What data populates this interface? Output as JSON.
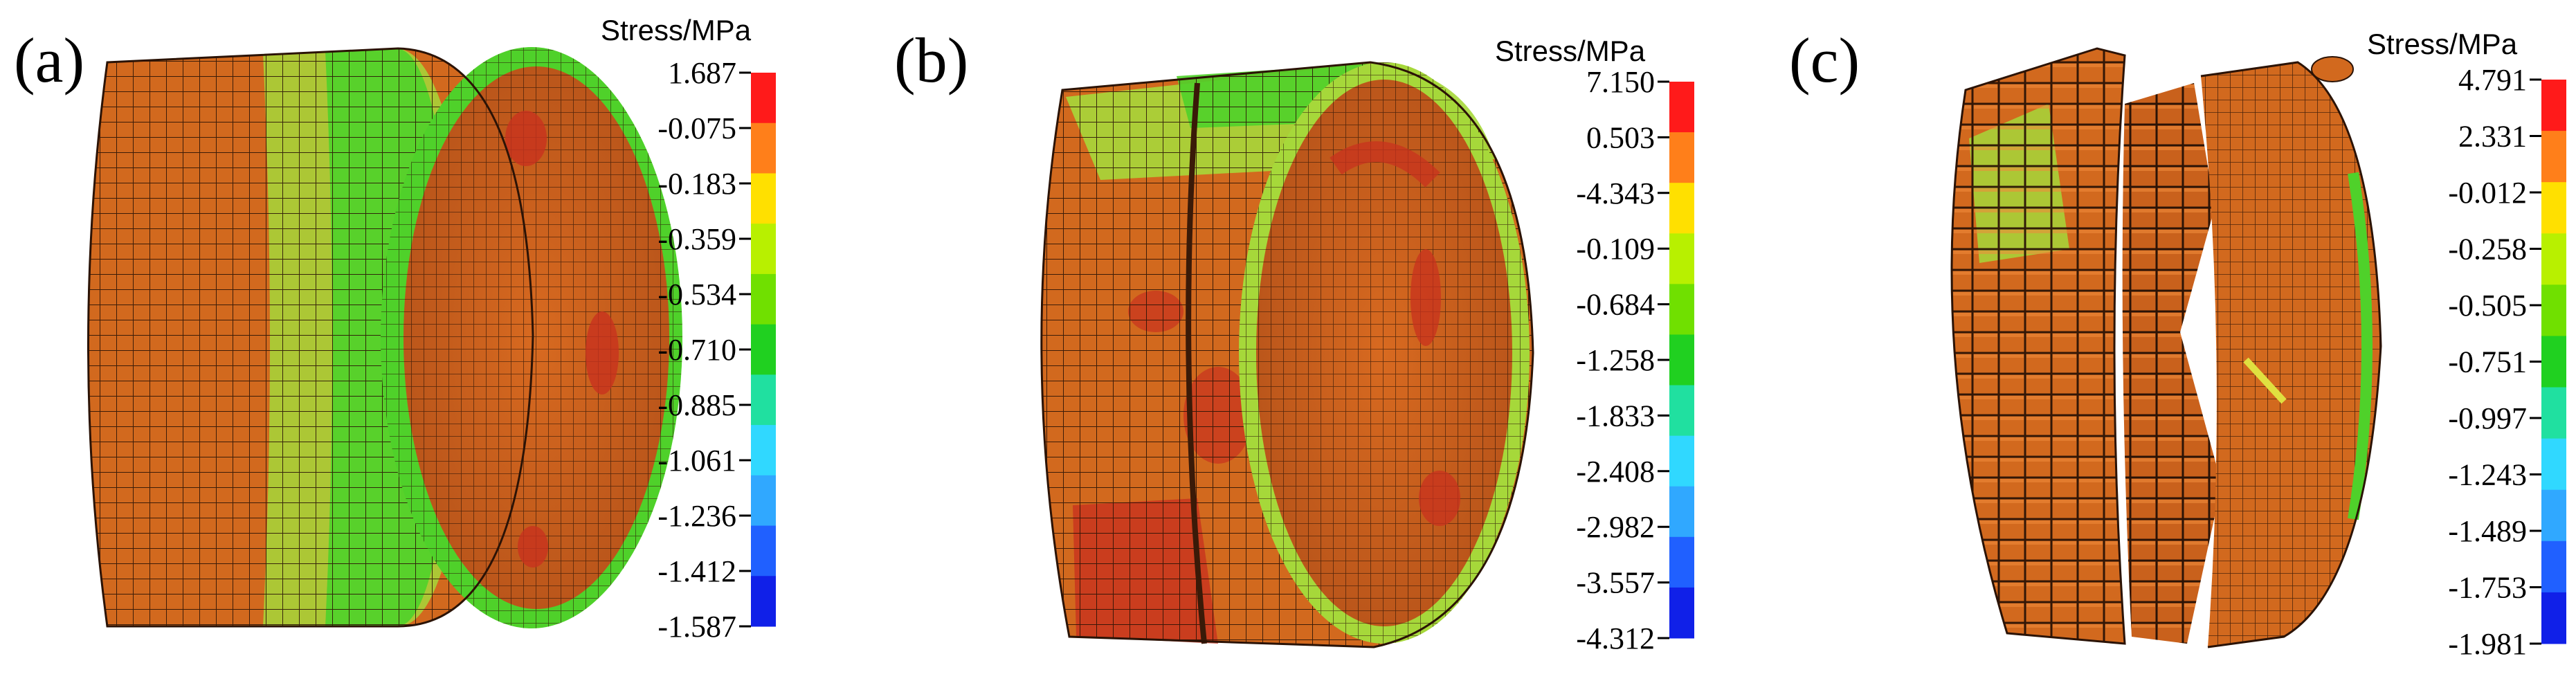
{
  "colors": [
    "#ff1a1a",
    "#ff7f1a",
    "#ffe000",
    "#b8f000",
    "#70e000",
    "#20d020",
    "#20e0a0",
    "#30d8ff",
    "#30a8ff",
    "#2060ff",
    "#1020e8"
  ],
  "mesh": {
    "base": "#d2691e",
    "line": "#2b1306",
    "green": "#4fd12a",
    "lime": "#a6d83a",
    "hot": "#c8321e"
  },
  "panels": [
    {
      "label": "(a)",
      "legend_title": "Stress/MPa",
      "ticks": [
        "1.687",
        "-0.075",
        "-0.183",
        "-0.359",
        "-0.534",
        "-0.710",
        "-0.885",
        "-1.061",
        "-1.236",
        "-1.412",
        "-1.587"
      ]
    },
    {
      "label": "(b)",
      "legend_title": "Stress/MPa",
      "ticks": [
        "7.150",
        "0.503",
        "-4.343",
        "-0.109",
        "-0.684",
        "-1.258",
        "-1.833",
        "-2.408",
        "-2.982",
        "-3.557",
        "-4.312"
      ]
    },
    {
      "label": "(c)",
      "legend_title": "Stress/MPa",
      "ticks": [
        "4.791",
        "2.331",
        "-0.012",
        "-0.258",
        "-0.505",
        "-0.751",
        "-0.997",
        "-1.243",
        "-1.489",
        "-1.753",
        "-1.981"
      ]
    }
  ]
}
